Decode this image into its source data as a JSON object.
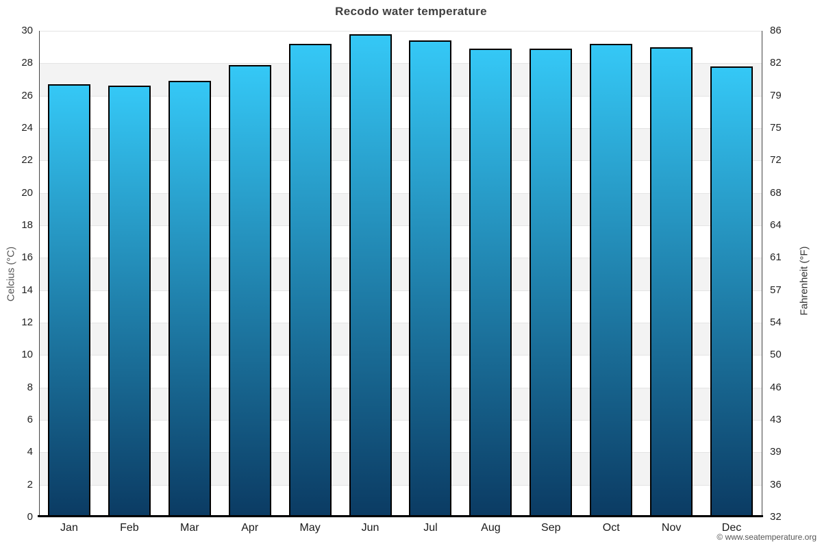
{
  "title": "Recodo water temperature",
  "footer": "© www.seatemperature.org",
  "chart_data": {
    "type": "bar",
    "title": "Recodo water temperature",
    "categories": [
      "Jan",
      "Feb",
      "Mar",
      "Apr",
      "May",
      "Jun",
      "Jul",
      "Aug",
      "Sep",
      "Oct",
      "Nov",
      "Dec"
    ],
    "values": [
      26.7,
      26.6,
      26.9,
      27.9,
      29.2,
      29.8,
      29.4,
      28.9,
      28.9,
      29.2,
      29.0,
      27.8
    ],
    "xlabel": "",
    "ylabel_left": "Celcius (°C)",
    "ylabel_right": "Fahrenheit (°F)",
    "ylim": [
      0,
      30
    ],
    "celsius_ticks": [
      0,
      2,
      4,
      6,
      8,
      10,
      12,
      14,
      16,
      18,
      20,
      22,
      24,
      26,
      28,
      30
    ],
    "fahrenheit_ticks": [
      "32",
      "36",
      "39",
      "43",
      "46",
      "50",
      "54",
      "57",
      "61",
      "64",
      "68",
      "72",
      "75",
      "79",
      "82",
      "86"
    ],
    "grid": true,
    "bands_alternating": true,
    "legend": "none"
  },
  "colors": {
    "bar_gradient_top": "#35c8f6",
    "bar_gradient_bottom": "#0b3b63",
    "bar_border": "#000000",
    "band_shade": "#f3f3f3",
    "band_light": "#ffffff",
    "gridline": "#e4e4e4",
    "axis_line": "#444444",
    "baseline": "#000000",
    "title_color": "#3f3f3f",
    "tick_color": "#222222",
    "month_color": "#1a1a1a",
    "axis_label_left_color": "#555555",
    "axis_label_right_color": "#333333",
    "footer_color": "#555555"
  }
}
